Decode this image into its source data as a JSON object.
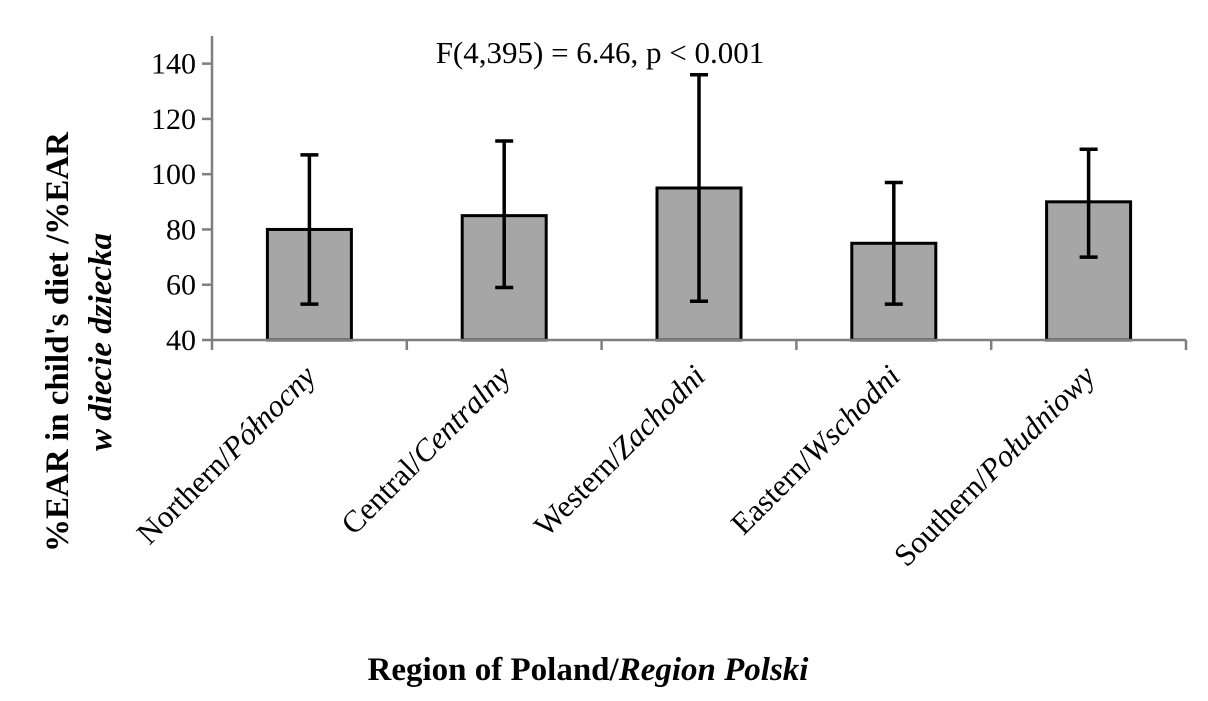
{
  "chart_data": {
    "type": "bar",
    "categories": [
      {
        "main": "Northern",
        "sep": "/",
        "italic": "Północny"
      },
      {
        "main": "Central",
        "sep": "/",
        "italic": "Centralny"
      },
      {
        "main": "Western",
        "sep": "/",
        "italic": "Zachodni"
      },
      {
        "main": "Eastern",
        "sep": "/",
        "italic": "Wschodni"
      },
      {
        "main": "Southern",
        "sep": "/",
        "italic": "Południowy"
      }
    ],
    "values": [
      80,
      85,
      95,
      75,
      90
    ],
    "error_high": [
      107,
      112,
      136,
      97,
      109
    ],
    "error_low": [
      53,
      59,
      54,
      53,
      70
    ],
    "ylim": [
      40,
      150
    ],
    "yticks": [
      40,
      60,
      80,
      100,
      120,
      140
    ],
    "annotation": "F(4,395)  = 6.46, p < 0.001",
    "xlabel": {
      "main": "Region of Poland/",
      "italic": "Region Polski"
    },
    "ylabel": {
      "line1": "%EAR in child's diet /%EAR",
      "line2": "w diecie dziecka"
    },
    "grid": false,
    "legend": "none",
    "colors": {
      "bar_fill": "#a6a6a6",
      "bar_stroke": "#000000",
      "axis": "#7f7f7f"
    }
  }
}
